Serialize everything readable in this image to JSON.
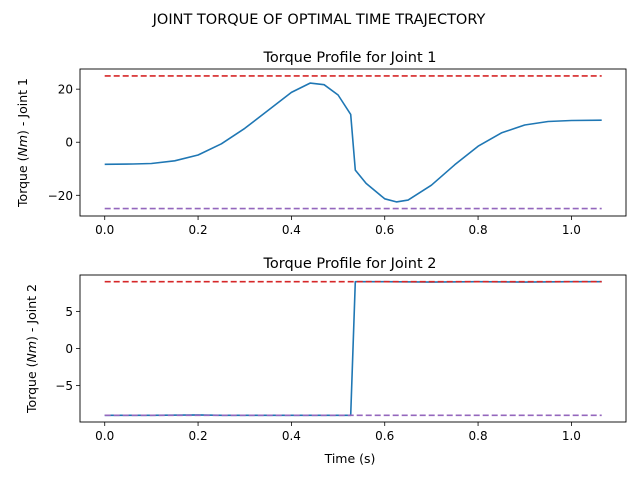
{
  "figure": {
    "suptitle": "JOINT TORQUE OF OPTIMAL TIME TRAJECTORY"
  },
  "chart_data": [
    {
      "type": "line",
      "title": "Torque Profile for Joint 1",
      "ylabel_prefix": "Torque (",
      "ylabel_unit": "Nm",
      "ylabel_suffix": ") - Joint 1",
      "xlabel": "",
      "xlim": [
        -0.053,
        1.117
      ],
      "ylim": [
        -27.8,
        27.6
      ],
      "xticks": [
        0.0,
        0.2,
        0.4,
        0.6,
        0.8,
        1.0
      ],
      "xtick_labels": [
        "0.0",
        "0.2",
        "0.4",
        "0.6",
        "0.8",
        "1.0"
      ],
      "yticks": [
        -20,
        0,
        20
      ],
      "ytick_labels": [
        "−20",
        "0",
        "20"
      ],
      "grid": false,
      "series": [
        {
          "color": "#1f77b4",
          "style": "solid",
          "x": [
            0.0,
            0.06,
            0.1,
            0.15,
            0.2,
            0.25,
            0.3,
            0.35,
            0.4,
            0.44,
            0.47,
            0.5,
            0.527,
            0.537,
            0.56,
            0.6,
            0.625,
            0.65,
            0.7,
            0.75,
            0.8,
            0.85,
            0.9,
            0.95,
            1.0,
            1.065
          ],
          "y": [
            -8.3,
            -8.2,
            -8.0,
            -7.0,
            -4.8,
            -0.6,
            5.2,
            12.0,
            18.8,
            22.3,
            21.7,
            17.8,
            10.5,
            -10.5,
            -15.5,
            -21.3,
            -22.5,
            -21.8,
            -16.2,
            -8.5,
            -1.5,
            3.5,
            6.5,
            7.8,
            8.2,
            8.3
          ]
        },
        {
          "color": "#d62728",
          "style": "dashed",
          "x": [
            0.0,
            1.065
          ],
          "y": [
            25.0,
            25.0
          ]
        },
        {
          "color": "#9467bd",
          "style": "dashed",
          "x": [
            0.0,
            1.065
          ],
          "y": [
            -25.0,
            -25.0
          ]
        }
      ]
    },
    {
      "type": "line",
      "title": "Torque Profile for Joint 2",
      "ylabel_prefix": "Torque (",
      "ylabel_unit": "Nm",
      "ylabel_suffix": ") - Joint 2",
      "xlabel": "Time (s)",
      "xlim": [
        -0.053,
        1.117
      ],
      "ylim": [
        -9.9,
        9.9
      ],
      "xticks": [
        0.0,
        0.2,
        0.4,
        0.6,
        0.8,
        1.0
      ],
      "xtick_labels": [
        "0.0",
        "0.2",
        "0.4",
        "0.6",
        "0.8",
        "1.0"
      ],
      "yticks": [
        -5,
        0,
        5
      ],
      "ytick_labels": [
        "−5",
        "0",
        "5"
      ],
      "grid": false,
      "series": [
        {
          "color": "#1f77b4",
          "style": "solid",
          "x": [
            0.0,
            0.1,
            0.2,
            0.25,
            0.3,
            0.4,
            0.5,
            0.527,
            0.537,
            0.6,
            0.7,
            0.8,
            0.9,
            1.0,
            1.065
          ],
          "y": [
            -9.0,
            -9.0,
            -8.95,
            -9.0,
            -9.0,
            -9.0,
            -9.0,
            -9.0,
            9.0,
            9.0,
            8.95,
            9.0,
            8.95,
            9.0,
            9.0
          ]
        },
        {
          "color": "#d62728",
          "style": "dashed",
          "x": [
            0.0,
            1.065
          ],
          "y": [
            9.0,
            9.0
          ]
        },
        {
          "color": "#9467bd",
          "style": "dashed",
          "x": [
            0.0,
            1.065
          ],
          "y": [
            -9.0,
            -9.0
          ]
        }
      ]
    }
  ]
}
